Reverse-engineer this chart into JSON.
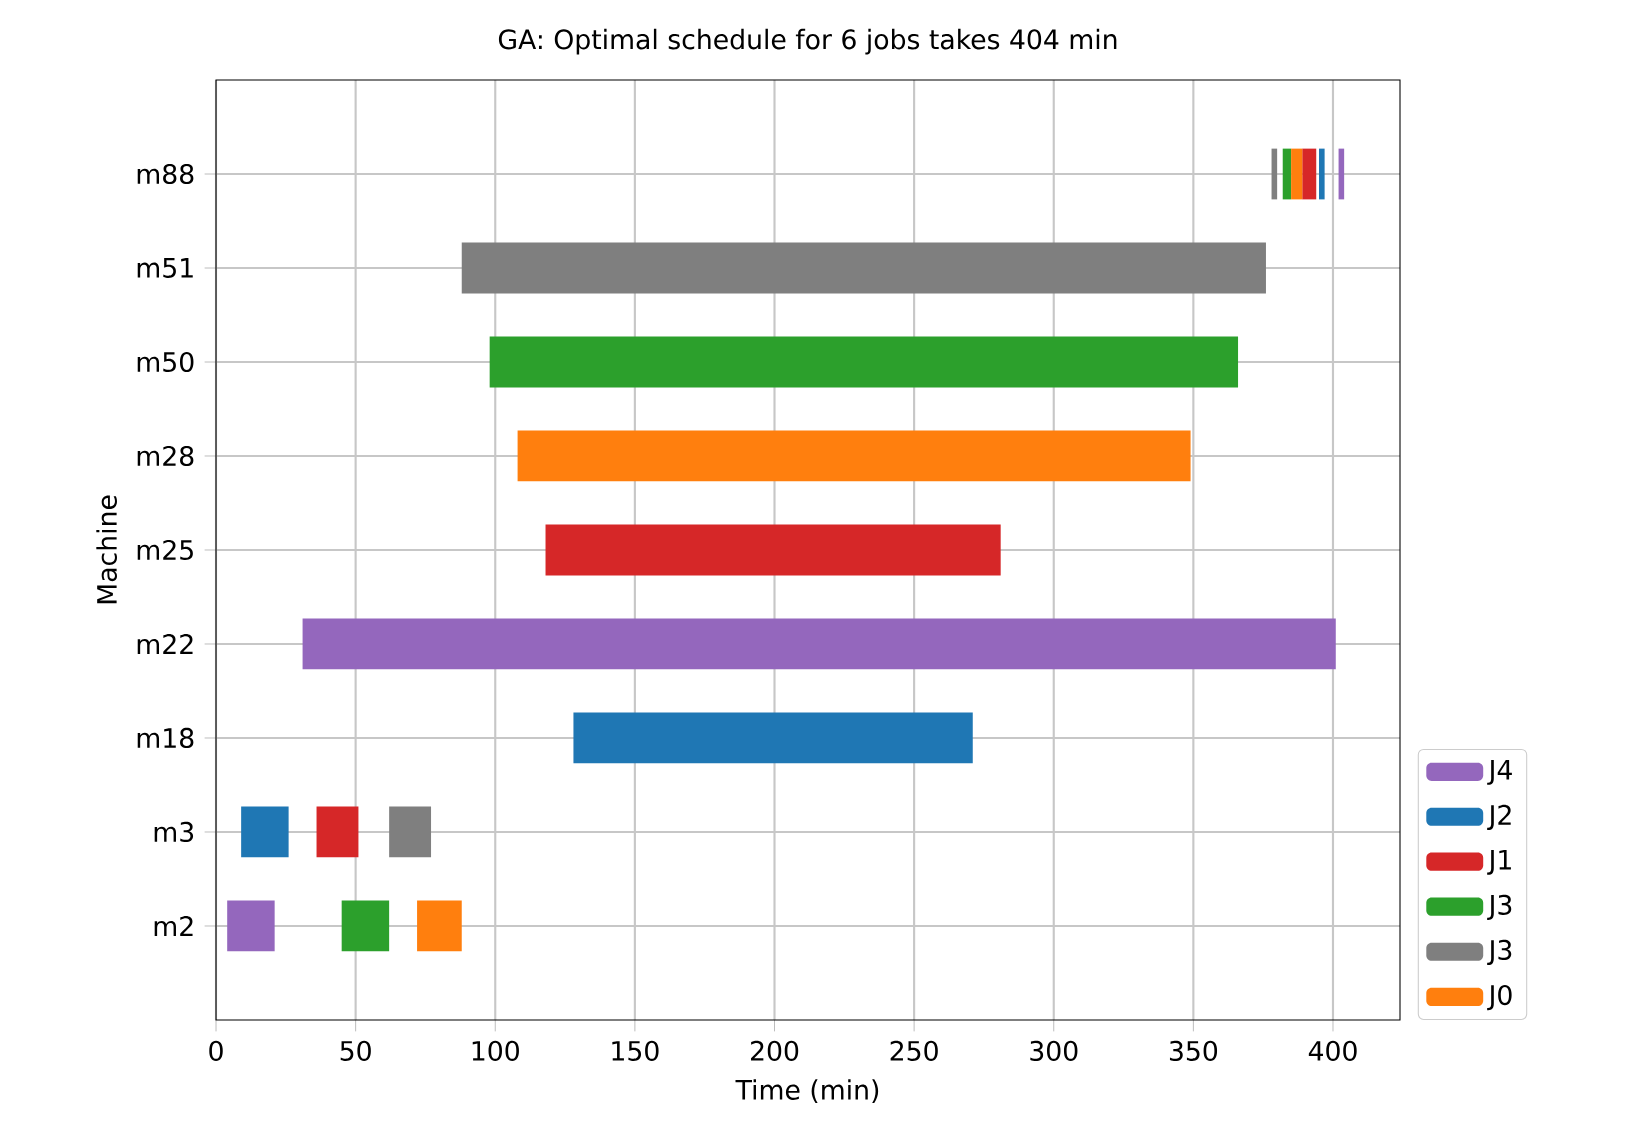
{
  "chart_data": {
    "type": "bar",
    "orientation": "horizontal",
    "title": "GA: Optimal schedule for 6 jobs takes 404 min",
    "xlabel": "Time (min)",
    "ylabel": "Machine",
    "categories": [
      "m88",
      "m51",
      "m50",
      "m28",
      "m25",
      "m22",
      "m18",
      "m3",
      "m2"
    ],
    "series": [
      {
        "name": "J4",
        "color": "#9467bd",
        "base": [
          402,
          null,
          null,
          null,
          null,
          31,
          null,
          null,
          4
        ],
        "values": [
          2,
          null,
          null,
          null,
          null,
          370,
          null,
          null,
          17
        ]
      },
      {
        "name": "J2",
        "color": "#1f77b4",
        "base": [
          395,
          null,
          null,
          null,
          null,
          null,
          128,
          9,
          null
        ],
        "values": [
          2,
          null,
          null,
          null,
          null,
          null,
          143,
          17,
          null
        ]
      },
      {
        "name": "J1",
        "color": "#d62728",
        "base": [
          389,
          null,
          null,
          null,
          118,
          null,
          null,
          36,
          null
        ],
        "values": [
          5,
          null,
          null,
          null,
          163,
          null,
          null,
          15,
          null
        ]
      },
      {
        "name": "J3",
        "color": "#2ca02c",
        "base": [
          382,
          null,
          98,
          null,
          null,
          null,
          null,
          null,
          45
        ],
        "values": [
          3,
          null,
          268,
          null,
          null,
          null,
          null,
          null,
          17
        ]
      },
      {
        "name": "J3",
        "color": "#7f7f7f",
        "base": [
          378,
          88,
          null,
          null,
          null,
          null,
          null,
          62,
          null
        ],
        "values": [
          2,
          288,
          null,
          null,
          null,
          null,
          null,
          15,
          null
        ]
      },
      {
        "name": "J0",
        "color": "#ff7f0e",
        "base": [
          385,
          null,
          null,
          108,
          null,
          null,
          null,
          null,
          72
        ],
        "values": [
          4,
          null,
          null,
          241,
          null,
          null,
          null,
          null,
          16
        ]
      }
    ],
    "xlim": [
      0,
      424
    ],
    "xticks": [
      0,
      50,
      100,
      150,
      200,
      250,
      300,
      350,
      400
    ],
    "grid": true,
    "legend": "bottom right"
  }
}
